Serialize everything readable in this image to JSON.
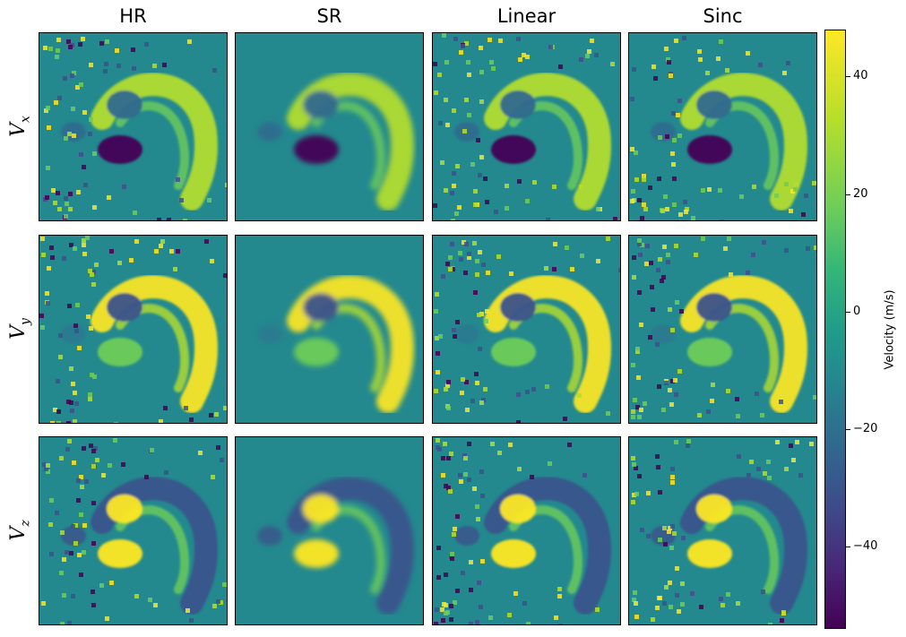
{
  "chart_data": {
    "type": "heatmap",
    "columns": [
      "HR",
      "SR",
      "Linear",
      "Sinc"
    ],
    "rows": [
      {
        "base": "V",
        "sub": "x"
      },
      {
        "base": "V",
        "sub": "y"
      },
      {
        "base": "V",
        "sub": "z"
      }
    ],
    "colorbar": {
      "label": "Velocity (m/s)",
      "range": [
        -54,
        48
      ],
      "ticks": [
        40,
        20,
        0,
        -20,
        -40
      ],
      "tick_labels": [
        "40",
        "20",
        "0",
        "−20",
        "−40"
      ],
      "colormap": "viridis"
    },
    "grid": false,
    "legend": "none"
  }
}
